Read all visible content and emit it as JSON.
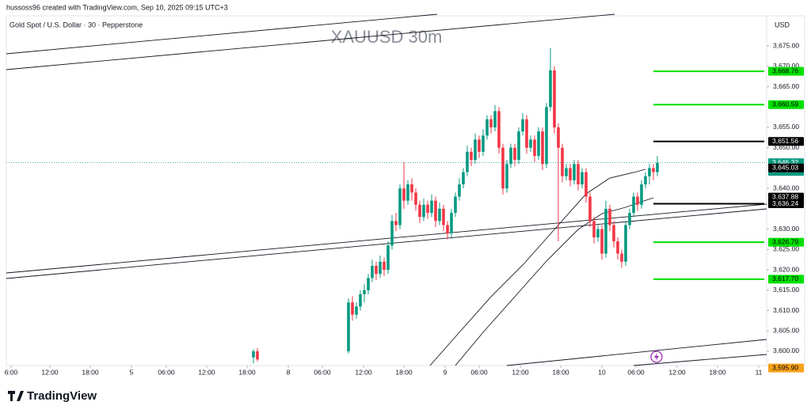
{
  "header": {
    "credit": "hussoss96 created with TradingView.com, Sep 10, 2025 09:15 UTC+3",
    "symbol": "Gold Spot / U.S. Dollar · 30 · Pepperstone",
    "currency": "USD",
    "brand": "TradingView"
  },
  "chart_data": {
    "type": "candlestick",
    "title": "XAUUSD 30m",
    "x": [
      -24,
      -23,
      0,
      1,
      2,
      3,
      4,
      5,
      6,
      7,
      8,
      9,
      10,
      11,
      12,
      13,
      14,
      15,
      16,
      17,
      18,
      19,
      20,
      21,
      22,
      23,
      24,
      25,
      26,
      27,
      28,
      29,
      30,
      31,
      32,
      33,
      34,
      35,
      36,
      37,
      38,
      39,
      40,
      41,
      42,
      43,
      44,
      45,
      46,
      47,
      48,
      49,
      50,
      51,
      52,
      53,
      54,
      55,
      56,
      57,
      58,
      59,
      60,
      61,
      62,
      63,
      64,
      65,
      66,
      67,
      68,
      69,
      70,
      71,
      72,
      73,
      74,
      75,
      76,
      77,
      78
    ],
    "open": [
      3598.5,
      3600,
      3600,
      3612,
      3609,
      3611,
      3614,
      3615,
      3618,
      3621,
      3619,
      3622,
      3620,
      3626,
      3632,
      3631,
      3640,
      3637,
      3641,
      3639,
      3636,
      3633,
      3636,
      3634,
      3637,
      3632,
      3635,
      3631,
      3629,
      3634,
      3638,
      3641,
      3644,
      3649,
      3647,
      3652,
      3649,
      3653,
      3657,
      3655,
      3659,
      3650,
      3640,
      3646,
      3650,
      3647,
      3654,
      3657,
      3650,
      3652,
      3648,
      3654,
      3646,
      3660,
      3669,
      3655,
      3650,
      3643,
      3645,
      3642,
      3646,
      3641,
      3644,
      3638,
      3632,
      3628,
      3630,
      3624,
      3635,
      3631,
      3627,
      3624,
      3622,
      3631,
      3634,
      3638,
      3636,
      3641,
      3643,
      3645,
      3644
    ],
    "high": [
      3600.5,
      3600.8,
      3613,
      3613.5,
      3612,
      3615,
      3616.5,
      3619,
      3622.5,
      3622,
      3623.5,
      3623,
      3627,
      3633.5,
      3634,
      3641,
      3646.5,
      3642,
      3642.5,
      3640,
      3637,
      3637.5,
      3637,
      3638.5,
      3638,
      3636.5,
      3636,
      3632,
      3635,
      3639,
      3642.5,
      3645,
      3650.5,
      3650,
      3653.5,
      3653,
      3654.5,
      3658,
      3658,
      3660.5,
      3660,
      3651,
      3647,
      3651,
      3651,
      3655,
      3658.5,
      3658,
      3653,
      3653,
      3655,
      3655,
      3661,
      3674.5,
      3670,
      3656,
      3651,
      3646,
      3646,
      3647,
      3647,
      3645,
      3645,
      3639,
      3633,
      3631,
      3631,
      3637,
      3636,
      3632,
      3628,
      3625,
      3632,
      3635,
      3639,
      3639,
      3642,
      3644,
      3646,
      3646,
      3648
    ],
    "low": [
      3597,
      3597.5,
      3599.5,
      3607.5,
      3608,
      3610,
      3612,
      3614,
      3617,
      3617.5,
      3618,
      3618.5,
      3619,
      3625,
      3629.5,
      3630,
      3635,
      3636,
      3637,
      3634.5,
      3631.5,
      3632,
      3632.5,
      3633,
      3630.5,
      3631,
      3629.5,
      3627.5,
      3628,
      3633,
      3637,
      3640,
      3643,
      3645.5,
      3646,
      3647.5,
      3648,
      3652,
      3653.5,
      3654,
      3648.5,
      3638.5,
      3639,
      3645,
      3645.5,
      3646,
      3653,
      3648.5,
      3649,
      3646.5,
      3647,
      3644.5,
      3645,
      3659,
      3653.5,
      3627,
      3641.5,
      3642,
      3640.5,
      3641,
      3639.5,
      3640,
      3636.5,
      3630.5,
      3626.5,
      3627,
      3622.5,
      3623,
      3629.5,
      3625.5,
      3622.5,
      3620.5,
      3621,
      3630,
      3633,
      3634.5,
      3635,
      3640,
      3641,
      3642,
      3643
    ],
    "close": [
      3600,
      3598,
      3612,
      3609,
      3611,
      3614,
      3615,
      3618,
      3621,
      3619,
      3622,
      3620,
      3626,
      3632,
      3631,
      3640,
      3637,
      3641,
      3639,
      3636,
      3633,
      3636,
      3634,
      3637,
      3632,
      3635,
      3631,
      3629,
      3634,
      3638,
      3641,
      3644,
      3649,
      3647,
      3652,
      3649,
      3653,
      3657,
      3655,
      3659,
      3650,
      3640,
      3646,
      3650,
      3647,
      3654,
      3657,
      3650,
      3652,
      3648,
      3654,
      3646,
      3660,
      3669,
      3655,
      3650,
      3643,
      3645,
      3642,
      3646,
      3641,
      3644,
      3638,
      3632,
      3628,
      3630,
      3624,
      3635,
      3631,
      3627,
      3624,
      3622,
      3631,
      3634,
      3638,
      3636,
      3641,
      3643,
      3645,
      3644,
      3646.32
    ],
    "up_color": "#089981",
    "down_color": "#f23645",
    "xlim": [
      -86.4,
      105.6
    ],
    "ylim": [
      3596.5,
      3682.4
    ],
    "xticks": [
      {
        "value": -85.2,
        "label": "6:00"
      },
      {
        "value": -75.4,
        "label": "12:00"
      },
      {
        "value": -65.2,
        "label": "18:00"
      },
      {
        "value": -54.8,
        "label": "5"
      },
      {
        "value": -46,
        "label": "06:00"
      },
      {
        "value": -35.8,
        "label": "12:00"
      },
      {
        "value": -25.6,
        "label": "18:00"
      },
      {
        "value": -15.2,
        "label": "8"
      },
      {
        "value": -6.6,
        "label": "06:00"
      },
      {
        "value": 3.8,
        "label": "12:00"
      },
      {
        "value": 14,
        "label": "18:00"
      },
      {
        "value": 24.4,
        "label": "9"
      },
      {
        "value": 33,
        "label": "06:00"
      },
      {
        "value": 43.4,
        "label": "12:00"
      },
      {
        "value": 53.6,
        "label": "18:00"
      },
      {
        "value": 64,
        "label": "10"
      },
      {
        "value": 72.6,
        "label": "06:00"
      },
      {
        "value": 83,
        "label": "12:00"
      },
      {
        "value": 93.2,
        "label": "18:00"
      },
      {
        "value": 103.6,
        "label": "11"
      }
    ],
    "yticks": [
      {
        "value": 3675,
        "label": "3,675.00"
      },
      {
        "value": 3670,
        "label": "3,670.00"
      },
      {
        "value": 3665,
        "label": "3,665.00"
      },
      {
        "value": 3655,
        "label": "3,655.00"
      },
      {
        "value": 3650,
        "label": "3,650.00"
      },
      {
        "value": 3640,
        "label": "3,640.00"
      },
      {
        "value": 3630,
        "label": "3,630.00"
      },
      {
        "value": 3625,
        "label": "3,625.00"
      },
      {
        "value": 3620,
        "label": "3,620.00"
      },
      {
        "value": 3615,
        "label": "3,615.00"
      },
      {
        "value": 3610,
        "label": "3,610.00"
      },
      {
        "value": 3605,
        "label": "3,605.00"
      },
      {
        "value": 3600,
        "label": "3,600.00"
      }
    ],
    "levels": [
      {
        "value": 3668.76,
        "label": "3,668.76",
        "color": "#00e000",
        "line": true
      },
      {
        "value": 3660.59,
        "label": "3,660.59",
        "color": "#00e000",
        "line": true
      },
      {
        "value": 3651.56,
        "label": "3,651.56",
        "color": "#000000",
        "line": true
      },
      {
        "value": 3646.32,
        "label": "3,646.32",
        "color": "#089981",
        "line": false,
        "countdown": "14:42"
      },
      {
        "value": 3645.03,
        "label": "3,645.03",
        "color": "#000000",
        "line": false
      },
      {
        "value": 3637.88,
        "label": "3,637.88",
        "color": "#000000",
        "line": false
      },
      {
        "value": 3636.24,
        "label": "3,636.24",
        "color": "#000000",
        "line": true
      },
      {
        "value": 3626.79,
        "label": "3,626.79",
        "color": "#00e000",
        "line": true
      },
      {
        "value": 3617.7,
        "label": "3,617.70",
        "color": "#00e000",
        "line": true
      },
      {
        "value": 3595.9,
        "label": "3,595.90",
        "color": "#f7a21b",
        "line": false
      }
    ]
  }
}
